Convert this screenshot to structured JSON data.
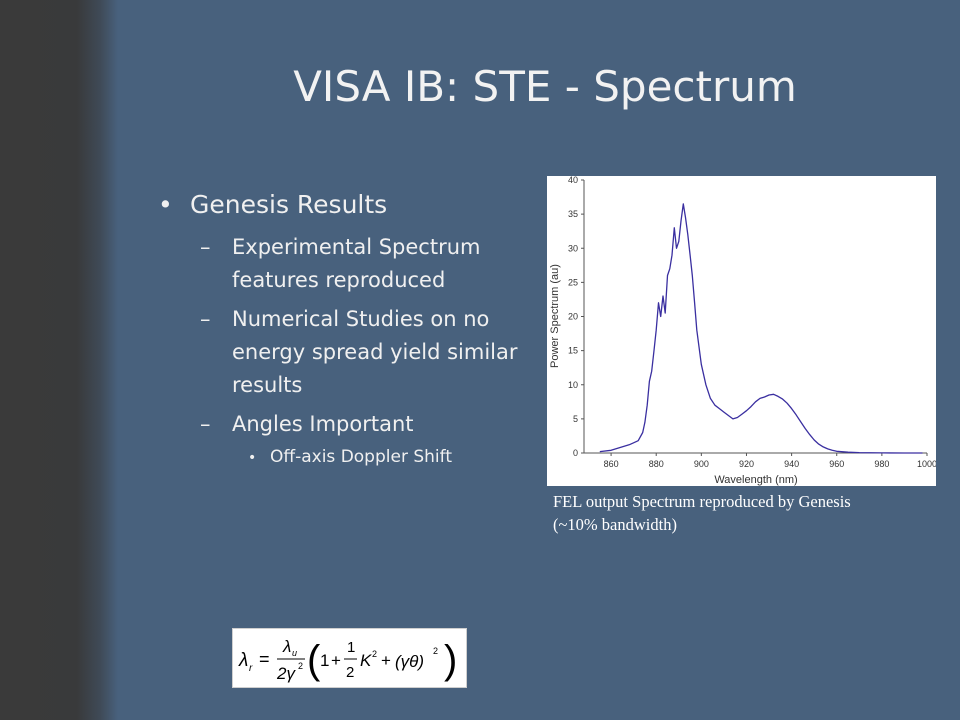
{
  "slide": {
    "title": "VISA IB: STE - Spectrum",
    "bullet_dot": "•",
    "sub_dash": "–",
    "bullets": [
      {
        "text": "Genesis Results",
        "sub": [
          {
            "text": "Experimental Spectrum features reproduced"
          },
          {
            "text": "Numerical Studies on no energy spread yield similar results"
          },
          {
            "text": "Angles Important",
            "sub": [
              {
                "text": "Off-axis Doppler Shift"
              }
            ]
          }
        ]
      }
    ],
    "caption": "FEL output Spectrum reproduced by Genesis (~10% bandwidth)",
    "formula": {
      "lhs": "λ",
      "lhs_sub": "r",
      "eq": "=",
      "num": "λ",
      "num_sub": "u",
      "den": "2γ",
      "den_sup": "2",
      "one": "1",
      "plus1": "+",
      "half_num": "1",
      "half_den": "2",
      "K": "K",
      "K_sup": "2",
      "plus2": "+",
      "gt": "(γθ)",
      "gt_sup": "2",
      "lparen": "(",
      "rparen": ")"
    }
  },
  "chart_data": {
    "type": "line",
    "xlabel": "Wavelength (nm)",
    "ylabel": "Power Spectrum (au)",
    "xlim": [
      848,
      1000
    ],
    "ylim": [
      0,
      40
    ],
    "xticks": [
      "860",
      "880",
      "900",
      "920",
      "940",
      "960",
      "980",
      "1000"
    ],
    "yticks": [
      "0",
      "5",
      "10",
      "15",
      "20",
      "25",
      "30",
      "35",
      "40"
    ],
    "grid": false,
    "line_color": "#3a2fa0",
    "series": [
      {
        "points": [
          [
            855,
            0.2
          ],
          [
            860,
            0.4
          ],
          [
            864,
            0.8
          ],
          [
            868,
            1.2
          ],
          [
            870,
            1.5
          ],
          [
            872,
            1.8
          ],
          [
            874,
            3.0
          ],
          [
            875,
            4.5
          ],
          [
            876,
            7.0
          ],
          [
            877,
            10.5
          ],
          [
            878,
            12.0
          ],
          [
            879,
            15.0
          ],
          [
            880,
            18.0
          ],
          [
            881,
            22.0
          ],
          [
            882,
            20.0
          ],
          [
            883,
            23.0
          ],
          [
            884,
            20.5
          ],
          [
            885,
            26.0
          ],
          [
            886,
            27.0
          ],
          [
            887,
            29.0
          ],
          [
            888,
            33.0
          ],
          [
            889,
            30.0
          ],
          [
            890,
            31.0
          ],
          [
            891,
            34.0
          ],
          [
            892,
            36.5
          ],
          [
            893,
            34.5
          ],
          [
            894,
            32.0
          ],
          [
            895,
            29.0
          ],
          [
            896,
            26.0
          ],
          [
            897,
            22.0
          ],
          [
            898,
            18.0
          ],
          [
            900,
            13.0
          ],
          [
            902,
            10.0
          ],
          [
            904,
            8.0
          ],
          [
            906,
            7.0
          ],
          [
            908,
            6.5
          ],
          [
            910,
            6.0
          ],
          [
            912,
            5.5
          ],
          [
            914,
            5.0
          ],
          [
            916,
            5.2
          ],
          [
            918,
            5.7
          ],
          [
            920,
            6.2
          ],
          [
            922,
            6.8
          ],
          [
            924,
            7.5
          ],
          [
            926,
            8.0
          ],
          [
            928,
            8.2
          ],
          [
            930,
            8.5
          ],
          [
            932,
            8.6
          ],
          [
            934,
            8.3
          ],
          [
            936,
            7.9
          ],
          [
            938,
            7.3
          ],
          [
            940,
            6.5
          ],
          [
            942,
            5.6
          ],
          [
            944,
            4.6
          ],
          [
            946,
            3.6
          ],
          [
            948,
            2.7
          ],
          [
            950,
            1.9
          ],
          [
            952,
            1.3
          ],
          [
            954,
            0.9
          ],
          [
            956,
            0.6
          ],
          [
            958,
            0.4
          ],
          [
            960,
            0.25
          ],
          [
            965,
            0.12
          ],
          [
            970,
            0.06
          ],
          [
            980,
            0.02
          ],
          [
            990,
            0.0
          ],
          [
            998,
            0.0
          ]
        ]
      }
    ]
  }
}
